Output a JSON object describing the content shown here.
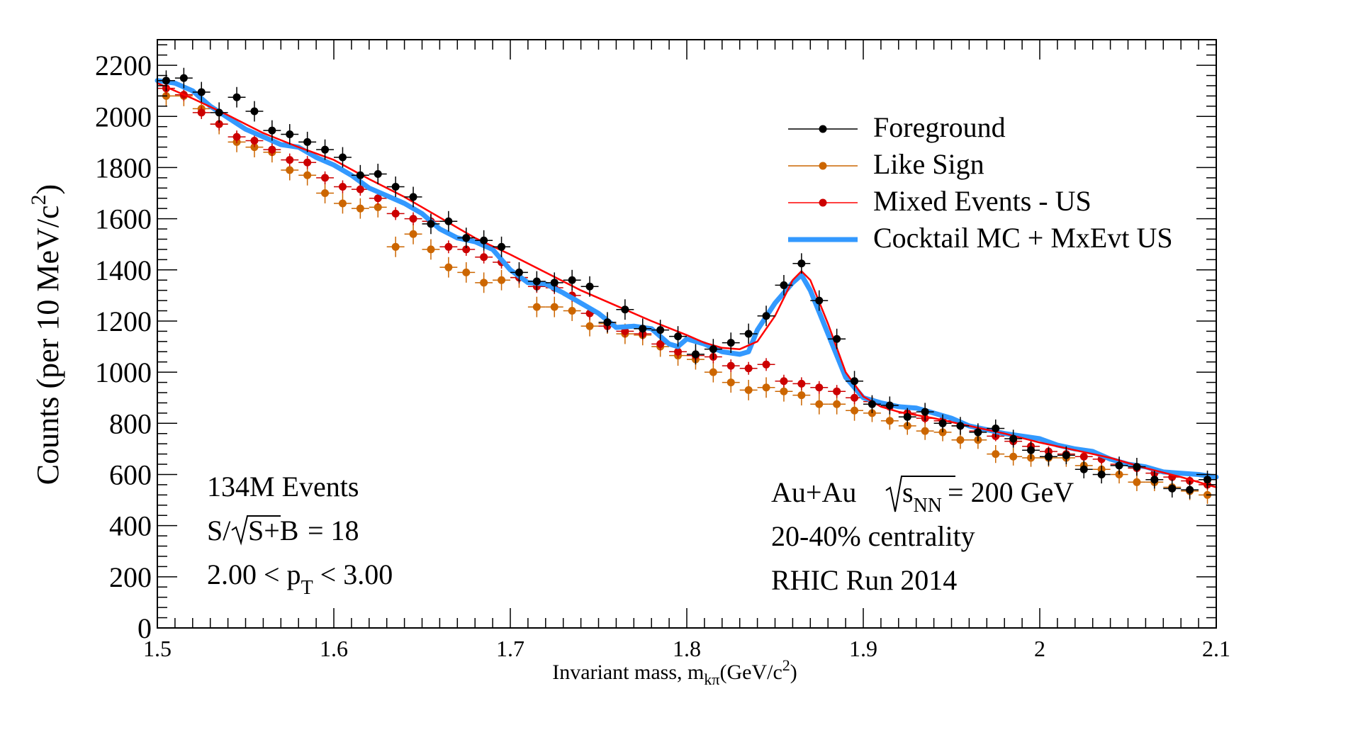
{
  "chart_data": {
    "type": "scatter",
    "xlabel": "Invariant mass, m",
    "xlabel_sub": "kπ",
    "xlabel_unit": "(GeV/c",
    "xlabel_unit_sup": "2",
    "xlabel_unit_close": ")",
    "ylabel": "Counts (per 10 MeV/c",
    "ylabel_sup": "2",
    "ylabel_close": ")",
    "xlim": [
      1.5,
      2.1
    ],
    "ylim": [
      0,
      2300
    ],
    "x_ticks": [
      "1.5",
      "1.6",
      "1.7",
      "1.8",
      "1.9",
      "2",
      "2.1"
    ],
    "y_ticks": [
      "0",
      "200",
      "400",
      "600",
      "800",
      "1000",
      "1200",
      "1400",
      "1600",
      "1800",
      "2000",
      "2200"
    ],
    "legend": {
      "position": "top-right",
      "entries": [
        "Foreground",
        "Like Sign",
        "Mixed Events - US",
        "Cocktail MC + MxEvt US"
      ]
    },
    "annotations_left": {
      "events": "134M Events",
      "signif_prefix": "S/",
      "signif_radicand": "S+B",
      "signif_value": "= 18",
      "pt_prefix": "2.00 < p",
      "pt_sub": "T",
      "pt_suffix": "< 3.00"
    },
    "annotations_right": {
      "system": "Au+Au",
      "energy_var": "s",
      "energy_sub": "NN",
      "energy_value": "= 200 GeV",
      "centrality": "20-40% centrality",
      "run": "RHIC Run 2014"
    },
    "colors": {
      "foreground": "#000000",
      "like_sign": "#cc6600",
      "mixed_events": "#cc0000",
      "mixed_line": "#ff0000",
      "cocktail": "#3399ff"
    },
    "x": [
      1.505,
      1.515,
      1.525,
      1.535,
      1.545,
      1.555,
      1.565,
      1.575,
      1.585,
      1.595,
      1.605,
      1.615,
      1.625,
      1.635,
      1.645,
      1.655,
      1.665,
      1.675,
      1.685,
      1.695,
      1.705,
      1.715,
      1.725,
      1.735,
      1.745,
      1.755,
      1.765,
      1.775,
      1.785,
      1.795,
      1.805,
      1.815,
      1.825,
      1.835,
      1.845,
      1.855,
      1.865,
      1.875,
      1.885,
      1.895,
      1.905,
      1.915,
      1.925,
      1.935,
      1.945,
      1.955,
      1.965,
      1.975,
      1.985,
      1.995,
      2.005,
      2.015,
      2.025,
      2.035,
      2.045,
      2.055,
      2.065,
      2.075,
      2.085,
      2.095
    ],
    "series": [
      {
        "name": "Foreground",
        "values": [
          2140,
          2150,
          2095,
          2015,
          2075,
          2020,
          1945,
          1930,
          1900,
          1870,
          1840,
          1770,
          1775,
          1725,
          1685,
          1580,
          1590,
          1525,
          1515,
          1490,
          1390,
          1355,
          1350,
          1360,
          1335,
          1195,
          1245,
          1170,
          1165,
          1140,
          1070,
          1090,
          1115,
          1150,
          1220,
          1340,
          1425,
          1280,
          1130,
          965,
          875,
          870,
          825,
          845,
          800,
          790,
          765,
          780,
          740,
          695,
          670,
          675,
          620,
          600,
          635,
          630,
          580,
          545,
          540,
          580
        ],
        "errors": [
          40,
          40,
          40,
          40,
          40,
          40,
          40,
          40,
          40,
          40,
          40,
          40,
          40,
          40,
          40,
          40,
          40,
          40,
          40,
          40,
          40,
          40,
          40,
          40,
          40,
          40,
          40,
          40,
          40,
          40,
          40,
          40,
          40,
          40,
          40,
          40,
          40,
          40,
          40,
          40,
          35,
          35,
          35,
          35,
          35,
          35,
          35,
          35,
          35,
          35,
          35,
          35,
          35,
          35,
          35,
          35,
          35,
          35,
          35,
          35
        ]
      },
      {
        "name": "Like Sign",
        "values": [
          2080,
          2080,
          2030,
          1970,
          1900,
          1880,
          1860,
          1790,
          1770,
          1700,
          1660,
          1640,
          1645,
          1490,
          1540,
          1480,
          1410,
          1390,
          1350,
          1360,
          1370,
          1255,
          1255,
          1240,
          1180,
          1190,
          1150,
          1145,
          1100,
          1065,
          1050,
          1000,
          960,
          930,
          940,
          925,
          910,
          875,
          875,
          850,
          840,
          810,
          790,
          770,
          765,
          735,
          735,
          680,
          670,
          665,
          665,
          665,
          635,
          620,
          600,
          570,
          570,
          550,
          535,
          520
        ],
        "errors": [
          40,
          40,
          40,
          40,
          40,
          40,
          40,
          40,
          40,
          40,
          40,
          40,
          40,
          40,
          40,
          40,
          40,
          40,
          40,
          40,
          40,
          40,
          40,
          40,
          40,
          40,
          40,
          40,
          40,
          40,
          40,
          40,
          40,
          40,
          40,
          40,
          40,
          40,
          40,
          40,
          35,
          35,
          35,
          35,
          35,
          35,
          35,
          35,
          35,
          35,
          35,
          35,
          35,
          35,
          35,
          35,
          35,
          35,
          35,
          35
        ]
      },
      {
        "name": "Mixed Events - US",
        "values": [
          2110,
          2085,
          2015,
          1970,
          1920,
          1905,
          1870,
          1830,
          1820,
          1760,
          1725,
          1715,
          1680,
          1620,
          1600,
          1590,
          1490,
          1480,
          1450,
          1430,
          1370,
          1335,
          1330,
          1300,
          1230,
          1180,
          1160,
          1150,
          1110,
          1080,
          1065,
          1060,
          1025,
          1015,
          1030,
          965,
          955,
          940,
          925,
          900,
          885,
          865,
          840,
          820,
          810,
          790,
          770,
          750,
          730,
          710,
          690,
          680,
          670,
          660,
          640,
          625,
          605,
          590,
          575,
          560
        ],
        "errors": [
          25,
          25,
          25,
          25,
          25,
          25,
          25,
          25,
          25,
          25,
          25,
          25,
          25,
          25,
          25,
          25,
          25,
          25,
          25,
          25,
          25,
          25,
          25,
          25,
          25,
          25,
          25,
          25,
          25,
          25,
          25,
          25,
          25,
          25,
          25,
          25,
          25,
          25,
          25,
          25,
          20,
          20,
          20,
          20,
          20,
          20,
          20,
          20,
          20,
          20,
          20,
          20,
          20,
          20,
          20,
          20,
          20,
          20,
          20,
          20
        ]
      },
      {
        "name": "Mixed Events - US (fit)",
        "x": [
          1.5,
          1.52,
          1.54,
          1.56,
          1.58,
          1.6,
          1.62,
          1.64,
          1.66,
          1.68,
          1.7,
          1.72,
          1.74,
          1.76,
          1.78,
          1.8,
          1.81,
          1.82,
          1.83,
          1.84,
          1.85,
          1.86,
          1.865,
          1.87,
          1.88,
          1.89,
          1.9,
          1.91,
          1.92,
          1.94,
          1.96,
          1.98,
          2.0,
          2.02,
          2.04,
          2.06,
          2.08,
          2.1
        ],
        "values": [
          2130,
          2070,
          2005,
          1935,
          1880,
          1830,
          1755,
          1685,
          1605,
          1525,
          1460,
          1390,
          1320,
          1260,
          1200,
          1145,
          1115,
          1095,
          1090,
          1120,
          1220,
          1360,
          1395,
          1360,
          1190,
          1000,
          905,
          865,
          845,
          820,
          790,
          760,
          725,
          695,
          665,
          625,
          590,
          550
        ]
      },
      {
        "name": "Cocktail MC + MxEvt US",
        "x": [
          1.5,
          1.51,
          1.52,
          1.53,
          1.54,
          1.55,
          1.56,
          1.57,
          1.58,
          1.59,
          1.6,
          1.61,
          1.62,
          1.63,
          1.64,
          1.65,
          1.66,
          1.67,
          1.68,
          1.69,
          1.7,
          1.71,
          1.72,
          1.73,
          1.74,
          1.75,
          1.76,
          1.77,
          1.78,
          1.79,
          1.795,
          1.8,
          1.81,
          1.82,
          1.83,
          1.835,
          1.84,
          1.85,
          1.86,
          1.865,
          1.87,
          1.88,
          1.89,
          1.9,
          1.91,
          1.92,
          1.93,
          1.94,
          1.95,
          1.96,
          1.97,
          1.98,
          1.99,
          2.0,
          2.01,
          2.02,
          2.03,
          2.04,
          2.05,
          2.06,
          2.07,
          2.08,
          2.09,
          2.1
        ],
        "values": [
          2140,
          2130,
          2100,
          2040,
          1995,
          1950,
          1920,
          1890,
          1880,
          1840,
          1810,
          1770,
          1720,
          1690,
          1660,
          1620,
          1560,
          1525,
          1510,
          1480,
          1400,
          1350,
          1345,
          1310,
          1270,
          1230,
          1175,
          1180,
          1170,
          1110,
          1100,
          1130,
          1110,
          1080,
          1070,
          1080,
          1165,
          1270,
          1350,
          1380,
          1320,
          1150,
          980,
          900,
          880,
          865,
          860,
          840,
          820,
          790,
          775,
          760,
          750,
          740,
          715,
          700,
          690,
          660,
          640,
          630,
          610,
          605,
          600,
          590
        ]
      }
    ]
  }
}
